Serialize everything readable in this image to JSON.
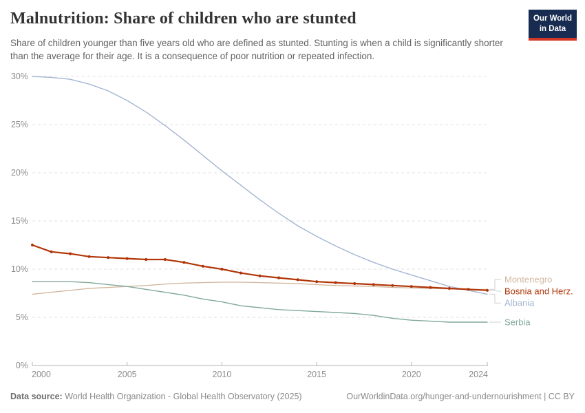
{
  "header": {
    "title": "Malnutrition: Share of children who are stunted",
    "subtitle": "Share of children younger than five years old who are defined as stunted. Stunting is when a child is significantly shorter than the average for their age. It is a consequence of poor nutrition or repeated infection."
  },
  "logo": {
    "line1": "Our World",
    "line2": "in Data",
    "bg_color": "#182c51",
    "accent_color": "#d43627"
  },
  "footer": {
    "data_source_label": "Data source:",
    "data_source_value": " World Health Organization - Global Health Observatory (2025)",
    "attribution": "OurWorldinData.org/hunger-and-undernourishment | CC BY"
  },
  "chart_data": {
    "type": "line",
    "title": "Malnutrition: Share of children who are stunted",
    "x": [
      2000,
      2001,
      2002,
      2003,
      2004,
      2005,
      2006,
      2007,
      2008,
      2009,
      2010,
      2011,
      2012,
      2013,
      2014,
      2015,
      2016,
      2017,
      2018,
      2019,
      2020,
      2021,
      2022,
      2023,
      2024
    ],
    "series": [
      {
        "name": "Montenegro",
        "color": "#d2b8a0",
        "markers": false,
        "values": [
          7.4,
          7.6,
          7.8,
          8.0,
          8.1,
          8.2,
          8.3,
          8.45,
          8.55,
          8.6,
          8.65,
          8.65,
          8.6,
          8.55,
          8.5,
          8.4,
          8.3,
          8.25,
          8.2,
          8.1,
          8.05,
          8.0,
          7.95,
          7.9,
          7.9
        ]
      },
      {
        "name": "Bosnia and Herz.",
        "color": "#b13507",
        "markers": true,
        "values": [
          12.5,
          11.8,
          11.6,
          11.3,
          11.2,
          11.1,
          11.0,
          11.0,
          10.7,
          10.3,
          10.0,
          9.6,
          9.3,
          9.1,
          8.9,
          8.7,
          8.6,
          8.5,
          8.4,
          8.3,
          8.2,
          8.1,
          8.0,
          7.9,
          7.8
        ]
      },
      {
        "name": "Albania",
        "color": "#a4b4d3",
        "markers": false,
        "values": [
          30.0,
          29.9,
          29.7,
          29.2,
          28.5,
          27.5,
          26.3,
          24.9,
          23.4,
          21.8,
          20.2,
          18.7,
          17.2,
          15.8,
          14.5,
          13.4,
          12.4,
          11.5,
          10.7,
          10.0,
          9.4,
          8.8,
          8.2,
          7.8,
          7.4
        ]
      },
      {
        "name": "Serbia",
        "color": "#7fa998",
        "markers": false,
        "values": [
          8.7,
          8.7,
          8.7,
          8.6,
          8.4,
          8.2,
          7.9,
          7.6,
          7.3,
          6.9,
          6.6,
          6.2,
          6.0,
          5.8,
          5.7,
          5.6,
          5.5,
          5.4,
          5.2,
          4.9,
          4.7,
          4.6,
          4.5,
          4.5,
          4.5
        ]
      }
    ],
    "x_ticks": [
      2000,
      2005,
      2010,
      2015,
      2020,
      2024
    ],
    "y_ticks": [
      0,
      5,
      10,
      15,
      20,
      25,
      30
    ],
    "y_tick_suffix": "%",
    "xlim": [
      2000,
      2024
    ],
    "ylim": [
      0,
      30
    ],
    "grid": "dashed-horizontal",
    "legend_position": "right"
  }
}
